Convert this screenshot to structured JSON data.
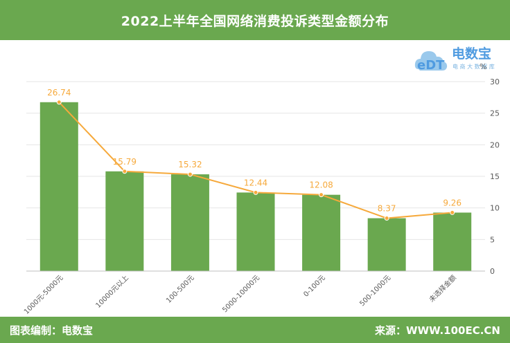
{
  "title": "2022上半年全国网络消费投诉类型金额分布",
  "logo": {
    "brand_cn": "电数宝",
    "brand_en": "eDT",
    "tagline": "电 商 大 数 据 库"
  },
  "footer": {
    "left": "图表编制：电数宝",
    "right": "来源：WWW.100EC.CN"
  },
  "chart_data": {
    "type": "bar",
    "categories": [
      "1000元-5000元",
      "10000元以上",
      "100-500元",
      "5000-10000元",
      "0-100元",
      "500-1000元",
      "未选择金额"
    ],
    "series": [
      {
        "values": [
          26.74,
          15.79,
          15.32,
          12.44,
          12.08,
          8.37,
          9.26
        ]
      }
    ],
    "data_labels": [
      "26.74",
      "15.79",
      "15.32",
      "12.44",
      "12.08",
      "8.37",
      "9.26"
    ],
    "overlay_line": true,
    "ylabel": "%",
    "y_axis_side": "right",
    "ylim": [
      0,
      30
    ],
    "yticks": [
      0,
      5,
      10,
      15,
      20,
      25,
      30
    ],
    "grid": true,
    "colors": {
      "bar": "#6aa84f",
      "line": "#f6a93b",
      "label": "#f6a93b",
      "axis_text": "#595959",
      "grid": "#e6e6e6"
    }
  }
}
